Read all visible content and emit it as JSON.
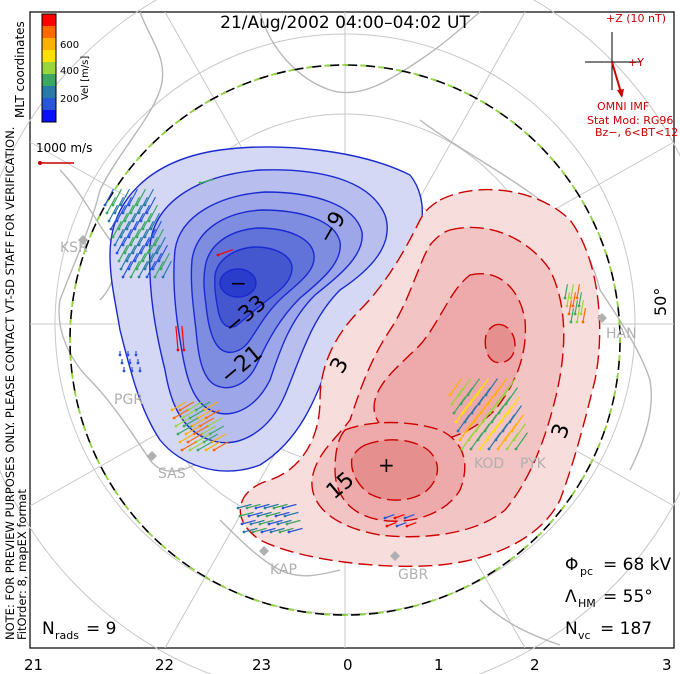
{
  "title": "21/Aug/2002 04:00–04:02 UT",
  "colorbar": {
    "ticks": [
      "600",
      "400",
      "200"
    ],
    "label": "Vel [m/s]",
    "colors": [
      "#ff0000",
      "#ff6a00",
      "#ffb000",
      "#ffe000",
      "#9ad43c",
      "#3aa860",
      "#2a7aa8",
      "#2a56d8",
      "#0a10ff"
    ]
  },
  "velocity_scale": "1000 m/s",
  "mlt_coordinates": "MLT coordinates",
  "side_notes": {
    "preview": "NOTE: FOR PREVIEW PURPOSES ONLY. PLEASE CONTACT VT-SD STAFF FOR VERIFICATION.",
    "fit": "FitOrder: 8, mapEX format"
  },
  "imf": {
    "z_label": "+Z (10 nT)",
    "y_label": "+Y",
    "source": "OMNI IMF",
    "model_line1": "Stat Mod: RG96",
    "model_line2": "Bz−, 6<BT<12"
  },
  "latitude_label": "50°",
  "stations": [
    "KSR",
    "PGR",
    "SAS",
    "KAP",
    "GBR",
    "KOD",
    "PYK",
    "HAN"
  ],
  "contour_labels_neg": [
    "−9",
    "−33",
    "−21"
  ],
  "contour_labels_pos": [
    "3",
    "15",
    "3"
  ],
  "stats": {
    "phi_label": "Φ",
    "phi_sub": "pc",
    "phi_value": "= 68 kV",
    "lambda_label": "Λ",
    "lambda_sub": "HM",
    "lambda_value": "= 55°",
    "nvc_label": "N",
    "nvc_sub": "vc",
    "nvc_value": "= 187",
    "nrads_label": "N",
    "nrads_sub": "rads",
    "nrads_value": "= 9"
  },
  "mlt_ticks": [
    "21",
    "22",
    "23",
    "0",
    "1",
    "2",
    "3"
  ],
  "colors": {
    "negative": "#1a2ad0",
    "positive": "#cc0000",
    "boundary": "#8fd63c"
  }
}
